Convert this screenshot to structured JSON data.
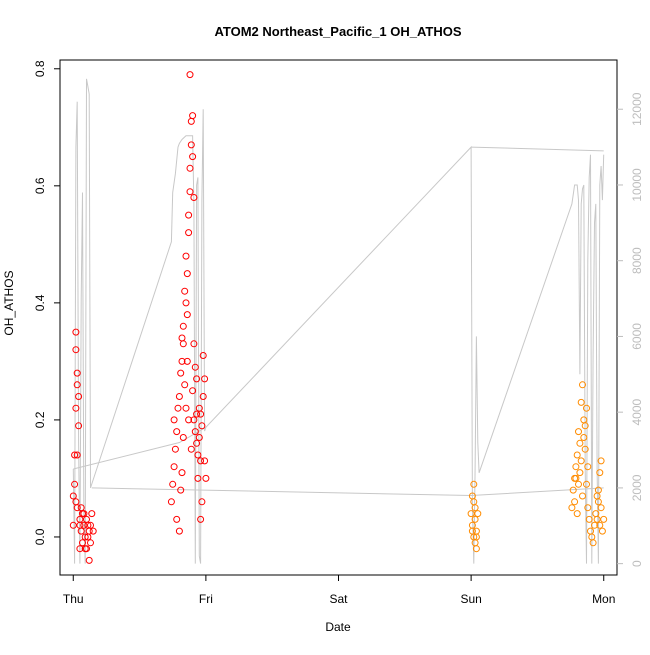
{
  "chart_data": {
    "type": "scatter",
    "title": "ATOM2 Northeast_Pacific_1 OH_ATHOS",
    "xlabel": "Date",
    "ylabel": "OH_ATHOS",
    "x_ticks": [
      "Thu",
      "Fri",
      "Sat",
      "Sun",
      "Mon"
    ],
    "y_ticks": [
      "0.0",
      "0.2",
      "0.4",
      "0.6",
      "0.8"
    ],
    "y2_ticks": [
      "0",
      "2000",
      "4000",
      "6000",
      "8000",
      "10000",
      "12000"
    ],
    "xlim": [
      -0.1,
      4.1
    ],
    "ylim": [
      -0.065,
      0.815
    ],
    "y2lim": [
      -300,
      13300
    ],
    "colors": {
      "scatter_day1": "#ff0000",
      "scatter_day2": "#ff8c00",
      "line": "#c8c8c8",
      "right_axis": "#bdbdbd"
    },
    "series": [
      {
        "kind": "points",
        "color": "#ff0000",
        "points": [
          [
            0.0,
            0.07
          ],
          [
            0.01,
            0.09
          ],
          [
            0.0,
            0.02
          ],
          [
            0.02,
            0.06
          ],
          [
            0.01,
            0.14
          ],
          [
            0.02,
            0.35
          ],
          [
            0.02,
            0.32
          ],
          [
            0.03,
            0.28
          ],
          [
            0.03,
            0.26
          ],
          [
            0.02,
            0.22
          ],
          [
            0.04,
            0.24
          ],
          [
            0.04,
            0.19
          ],
          [
            0.03,
            0.14
          ],
          [
            0.03,
            0.05
          ],
          [
            0.05,
            0.03
          ],
          [
            0.06,
            0.01
          ],
          [
            0.07,
            -0.01
          ],
          [
            0.05,
            0.02
          ],
          [
            0.08,
            0.04
          ],
          [
            0.09,
            0.0
          ],
          [
            0.1,
            -0.02
          ],
          [
            0.11,
            0.02
          ],
          [
            0.12,
            0.01
          ],
          [
            0.13,
            -0.01
          ],
          [
            0.1,
            0.03
          ],
          [
            0.14,
            0.04
          ],
          [
            0.12,
            -0.04
          ],
          [
            0.08,
            0.02
          ],
          [
            0.07,
            0.04
          ],
          [
            0.09,
            -0.02
          ],
          [
            0.11,
            0.0
          ],
          [
            0.06,
            0.05
          ],
          [
            0.05,
            -0.02
          ],
          [
            0.13,
            0.02
          ],
          [
            0.15,
            0.01
          ],
          [
            0.74,
            0.06
          ],
          [
            0.75,
            0.09
          ],
          [
            0.76,
            0.12
          ],
          [
            0.77,
            0.15
          ],
          [
            0.76,
            0.2
          ],
          [
            0.78,
            0.18
          ],
          [
            0.79,
            0.22
          ],
          [
            0.78,
            0.03
          ],
          [
            0.8,
            0.01
          ],
          [
            0.8,
            0.24
          ],
          [
            0.81,
            0.28
          ],
          [
            0.82,
            0.3
          ],
          [
            0.82,
            0.34
          ],
          [
            0.83,
            0.33
          ],
          [
            0.83,
            0.36
          ],
          [
            0.84,
            0.42
          ],
          [
            0.85,
            0.48
          ],
          [
            0.85,
            0.4
          ],
          [
            0.86,
            0.38
          ],
          [
            0.86,
            0.45
          ],
          [
            0.87,
            0.52
          ],
          [
            0.87,
            0.55
          ],
          [
            0.88,
            0.59
          ],
          [
            0.88,
            0.63
          ],
          [
            0.89,
            0.67
          ],
          [
            0.89,
            0.71
          ],
          [
            0.9,
            0.72
          ],
          [
            0.9,
            0.65
          ],
          [
            0.91,
            0.58
          ],
          [
            0.88,
            0.79
          ],
          [
            0.86,
            0.3
          ],
          [
            0.9,
            0.25
          ],
          [
            0.91,
            0.2
          ],
          [
            0.92,
            0.18
          ],
          [
            0.93,
            0.16
          ],
          [
            0.94,
            0.14
          ],
          [
            0.95,
            0.22
          ],
          [
            0.96,
            0.21
          ],
          [
            0.97,
            0.19
          ],
          [
            0.98,
            0.24
          ],
          [
            0.99,
            0.13
          ],
          [
            1.0,
            0.1
          ],
          [
            0.99,
            0.27
          ],
          [
            0.98,
            0.31
          ],
          [
            0.97,
            0.06
          ],
          [
            0.96,
            0.03
          ],
          [
            0.84,
            0.26
          ],
          [
            0.83,
            0.17
          ],
          [
            0.82,
            0.11
          ],
          [
            0.81,
            0.08
          ],
          [
            0.92,
            0.29
          ],
          [
            0.93,
            0.21
          ],
          [
            0.95,
            0.17
          ],
          [
            0.94,
            0.1
          ],
          [
            0.89,
            0.15
          ],
          [
            0.87,
            0.2
          ],
          [
            0.85,
            0.22
          ],
          [
            0.96,
            0.13
          ],
          [
            0.91,
            0.33
          ],
          [
            0.93,
            0.27
          ]
        ]
      },
      {
        "kind": "points",
        "color": "#ff8c00",
        "points": [
          [
            3.0,
            0.04
          ],
          [
            3.01,
            0.02
          ],
          [
            3.02,
            0.0
          ],
          [
            3.03,
            0.05
          ],
          [
            3.04,
            -0.02
          ],
          [
            3.02,
            0.09
          ],
          [
            3.01,
            0.07
          ],
          [
            3.03,
            0.03
          ],
          [
            3.04,
            0.01
          ],
          [
            3.05,
            0.04
          ],
          [
            3.03,
            -0.01
          ],
          [
            3.02,
            0.06
          ],
          [
            3.04,
            0.0
          ],
          [
            3.01,
            0.01
          ],
          [
            3.76,
            0.05
          ],
          [
            3.77,
            0.08
          ],
          [
            3.78,
            0.1
          ],
          [
            3.79,
            0.12
          ],
          [
            3.78,
            0.06
          ],
          [
            3.8,
            0.14
          ],
          [
            3.81,
            0.09
          ],
          [
            3.82,
            0.11
          ],
          [
            3.83,
            0.13
          ],
          [
            3.83,
            0.23
          ],
          [
            3.84,
            0.26
          ],
          [
            3.85,
            0.2
          ],
          [
            3.85,
            0.17
          ],
          [
            3.86,
            0.19
          ],
          [
            3.86,
            0.15
          ],
          [
            3.87,
            0.22
          ],
          [
            3.88,
            0.12
          ],
          [
            3.88,
            0.05
          ],
          [
            3.89,
            0.03
          ],
          [
            3.9,
            0.01
          ],
          [
            3.91,
            0.0
          ],
          [
            3.92,
            -0.01
          ],
          [
            3.93,
            0.02
          ],
          [
            3.94,
            0.04
          ],
          [
            3.95,
            0.03
          ],
          [
            3.96,
            0.06
          ],
          [
            3.97,
            0.02
          ],
          [
            3.98,
            0.05
          ],
          [
            3.99,
            0.01
          ],
          [
            4.0,
            0.03
          ],
          [
            3.97,
            0.11
          ],
          [
            3.98,
            0.13
          ],
          [
            3.96,
            0.08
          ],
          [
            3.87,
            0.09
          ],
          [
            3.84,
            0.07
          ],
          [
            3.82,
            0.16
          ],
          [
            3.81,
            0.18
          ],
          [
            3.8,
            0.04
          ],
          [
            3.79,
            0.1
          ],
          [
            3.95,
            0.07
          ]
        ]
      },
      {
        "kind": "line",
        "color": "#c8c8c8",
        "axis": "right",
        "points": [
          [
            0.0,
            2500
          ],
          [
            0.01,
            0
          ],
          [
            0.02,
            11000
          ],
          [
            0.03,
            12200
          ],
          [
            0.04,
            3200
          ],
          [
            0.05,
            0
          ],
          [
            0.06,
            7000
          ],
          [
            0.07,
            9800
          ],
          [
            0.08,
            1200
          ],
          [
            0.09,
            0
          ],
          [
            0.1,
            12800
          ],
          [
            0.11,
            12600
          ],
          [
            0.12,
            12400
          ],
          [
            0.13,
            2000
          ],
          [
            0.74,
            8500
          ],
          [
            0.75,
            9800
          ],
          [
            0.77,
            10300
          ],
          [
            0.79,
            11000
          ],
          [
            0.8,
            11100
          ],
          [
            0.82,
            11200
          ],
          [
            0.85,
            11300
          ],
          [
            0.88,
            11300
          ],
          [
            0.9,
            11300
          ],
          [
            0.91,
            9500
          ],
          [
            0.92,
            0
          ],
          [
            0.93,
            10000
          ],
          [
            0.94,
            10200
          ],
          [
            0.95,
            200
          ],
          [
            0.96,
            0
          ],
          [
            0.97,
            9600
          ],
          [
            0.98,
            12000
          ],
          [
            0.99,
            3500
          ],
          [
            1.0,
            3600
          ],
          [
            3.0,
            11000
          ],
          [
            3.01,
            1500
          ],
          [
            3.02,
            0
          ],
          [
            3.03,
            2500
          ],
          [
            3.04,
            6000
          ],
          [
            3.05,
            3200
          ],
          [
            3.06,
            2400
          ],
          [
            3.76,
            9500
          ],
          [
            3.78,
            10000
          ],
          [
            3.8,
            10000
          ],
          [
            3.81,
            9600
          ],
          [
            3.82,
            5000
          ],
          [
            3.83,
            9500
          ],
          [
            3.84,
            9900
          ],
          [
            3.85,
            10000
          ],
          [
            3.86,
            2500
          ],
          [
            3.87,
            0
          ],
          [
            3.88,
            8000
          ],
          [
            3.89,
            10200
          ],
          [
            3.9,
            10800
          ],
          [
            3.91,
            0
          ],
          [
            3.92,
            5500
          ],
          [
            3.93,
            9000
          ],
          [
            3.94,
            9500
          ],
          [
            3.95,
            2500
          ],
          [
            3.96,
            0
          ],
          [
            3.97,
            10000
          ],
          [
            3.98,
            10500
          ],
          [
            3.99,
            9600
          ],
          [
            4.0,
            10800
          ]
        ],
        "connectors": [
          [
            [
              0.0,
              2500
            ],
            [
              0.8,
              3200
            ],
            [
              1.0,
              3600
            ]
          ],
          [
            [
              0.14,
              2000
            ],
            [
              3.0,
              1800
            ],
            [
              4.0,
              2000
            ]
          ],
          [
            [
              3.0,
              11000
            ],
            [
              4.0,
              10900
            ]
          ]
        ]
      }
    ]
  }
}
